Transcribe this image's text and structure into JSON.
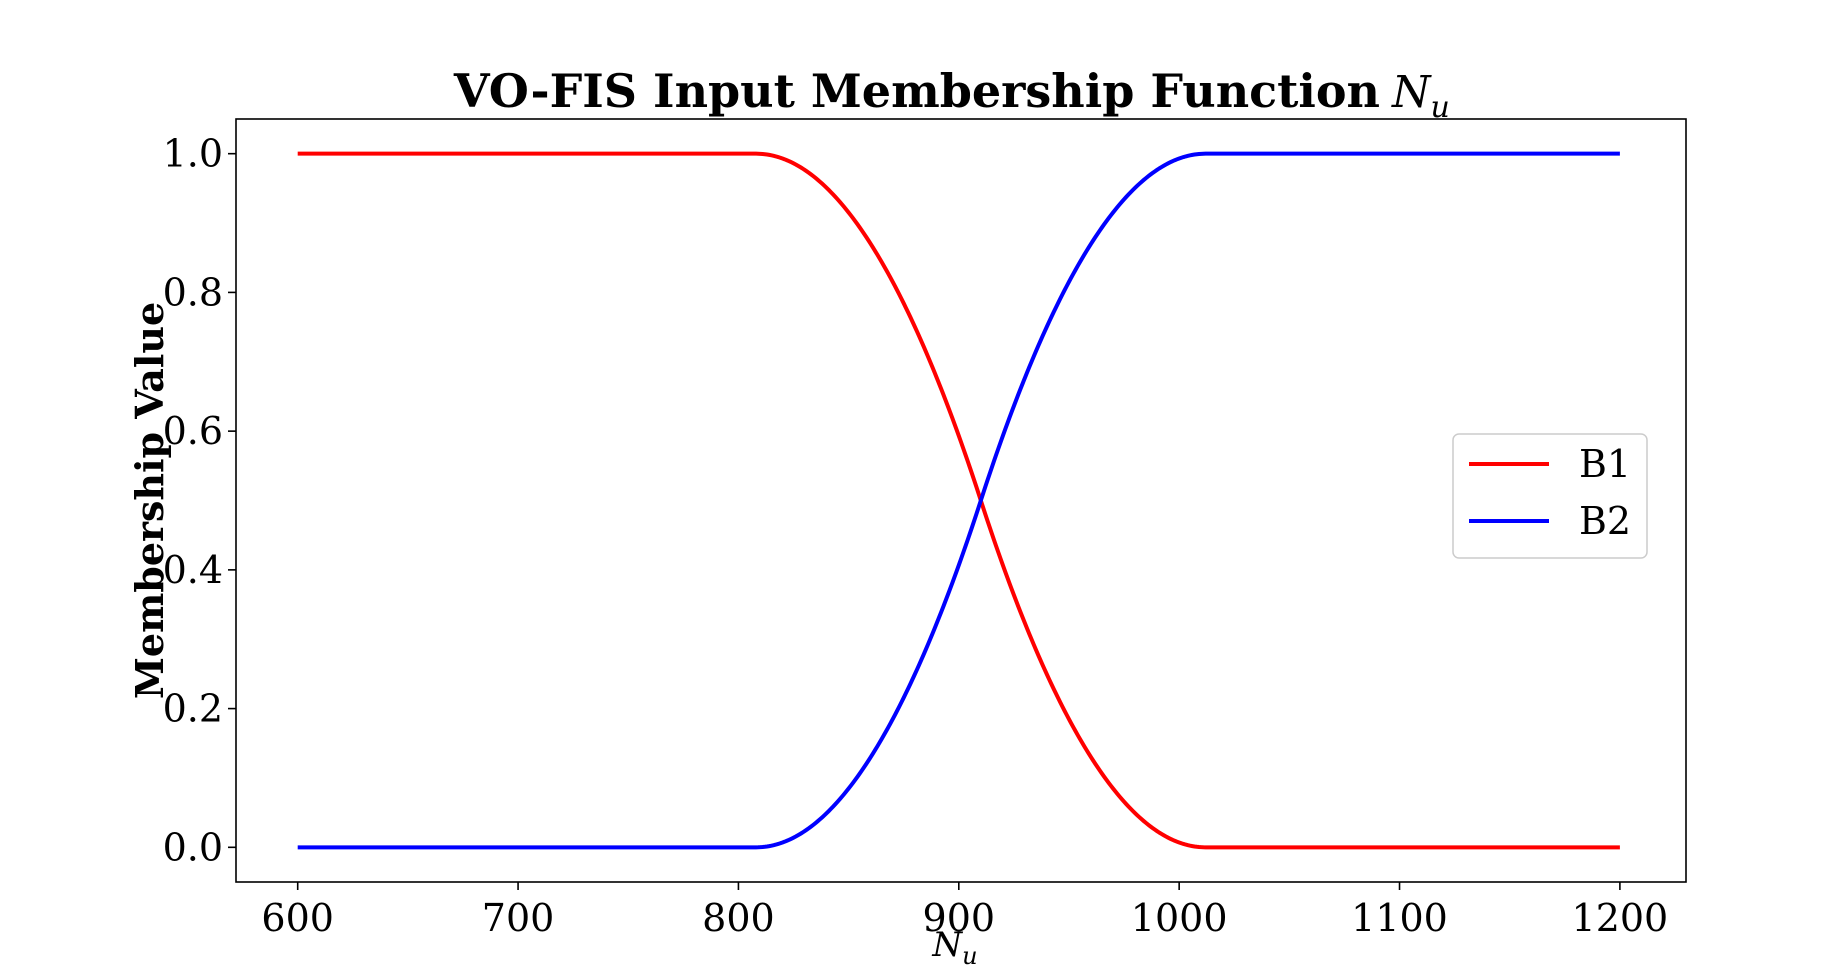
{
  "chart_data": {
    "type": "line",
    "title": "VO-FIS Input Membership Function",
    "title_math": {
      "base": "N",
      "sub": "u"
    },
    "xlabel_math": {
      "base": "N",
      "sub": "u"
    },
    "ylabel": "Membership Value",
    "xlim": [
      572,
      1230
    ],
    "ylim": [
      -0.05,
      1.05
    ],
    "xticks": [
      600,
      700,
      800,
      900,
      1000,
      1100,
      1200
    ],
    "yticks": [
      0.0,
      0.2,
      0.4,
      0.6,
      0.8,
      1.0
    ],
    "xtick_labels": [
      "600",
      "700",
      "800",
      "900",
      "1000",
      "1100",
      "1200"
    ],
    "ytick_labels": [
      "0.0",
      "0.2",
      "0.4",
      "0.6",
      "0.8",
      "1.0"
    ],
    "grid": false,
    "legend_position": "center-right",
    "series": [
      {
        "name": "B1",
        "color": "#ff0000",
        "shape": "z",
        "params": [
          808,
          1012
        ],
        "x": [
          600,
          808,
          860,
          910,
          960,
          1012,
          1200
        ],
        "y": [
          1.0,
          1.0,
          0.87,
          0.5,
          0.13,
          0.0,
          0.0
        ]
      },
      {
        "name": "B2",
        "color": "#0000ff",
        "shape": "s",
        "params": [
          808,
          1012
        ],
        "x": [
          600,
          808,
          860,
          910,
          960,
          1012,
          1200
        ],
        "y": [
          0.0,
          0.0,
          0.13,
          0.5,
          0.87,
          1.0,
          1.0
        ]
      }
    ]
  }
}
